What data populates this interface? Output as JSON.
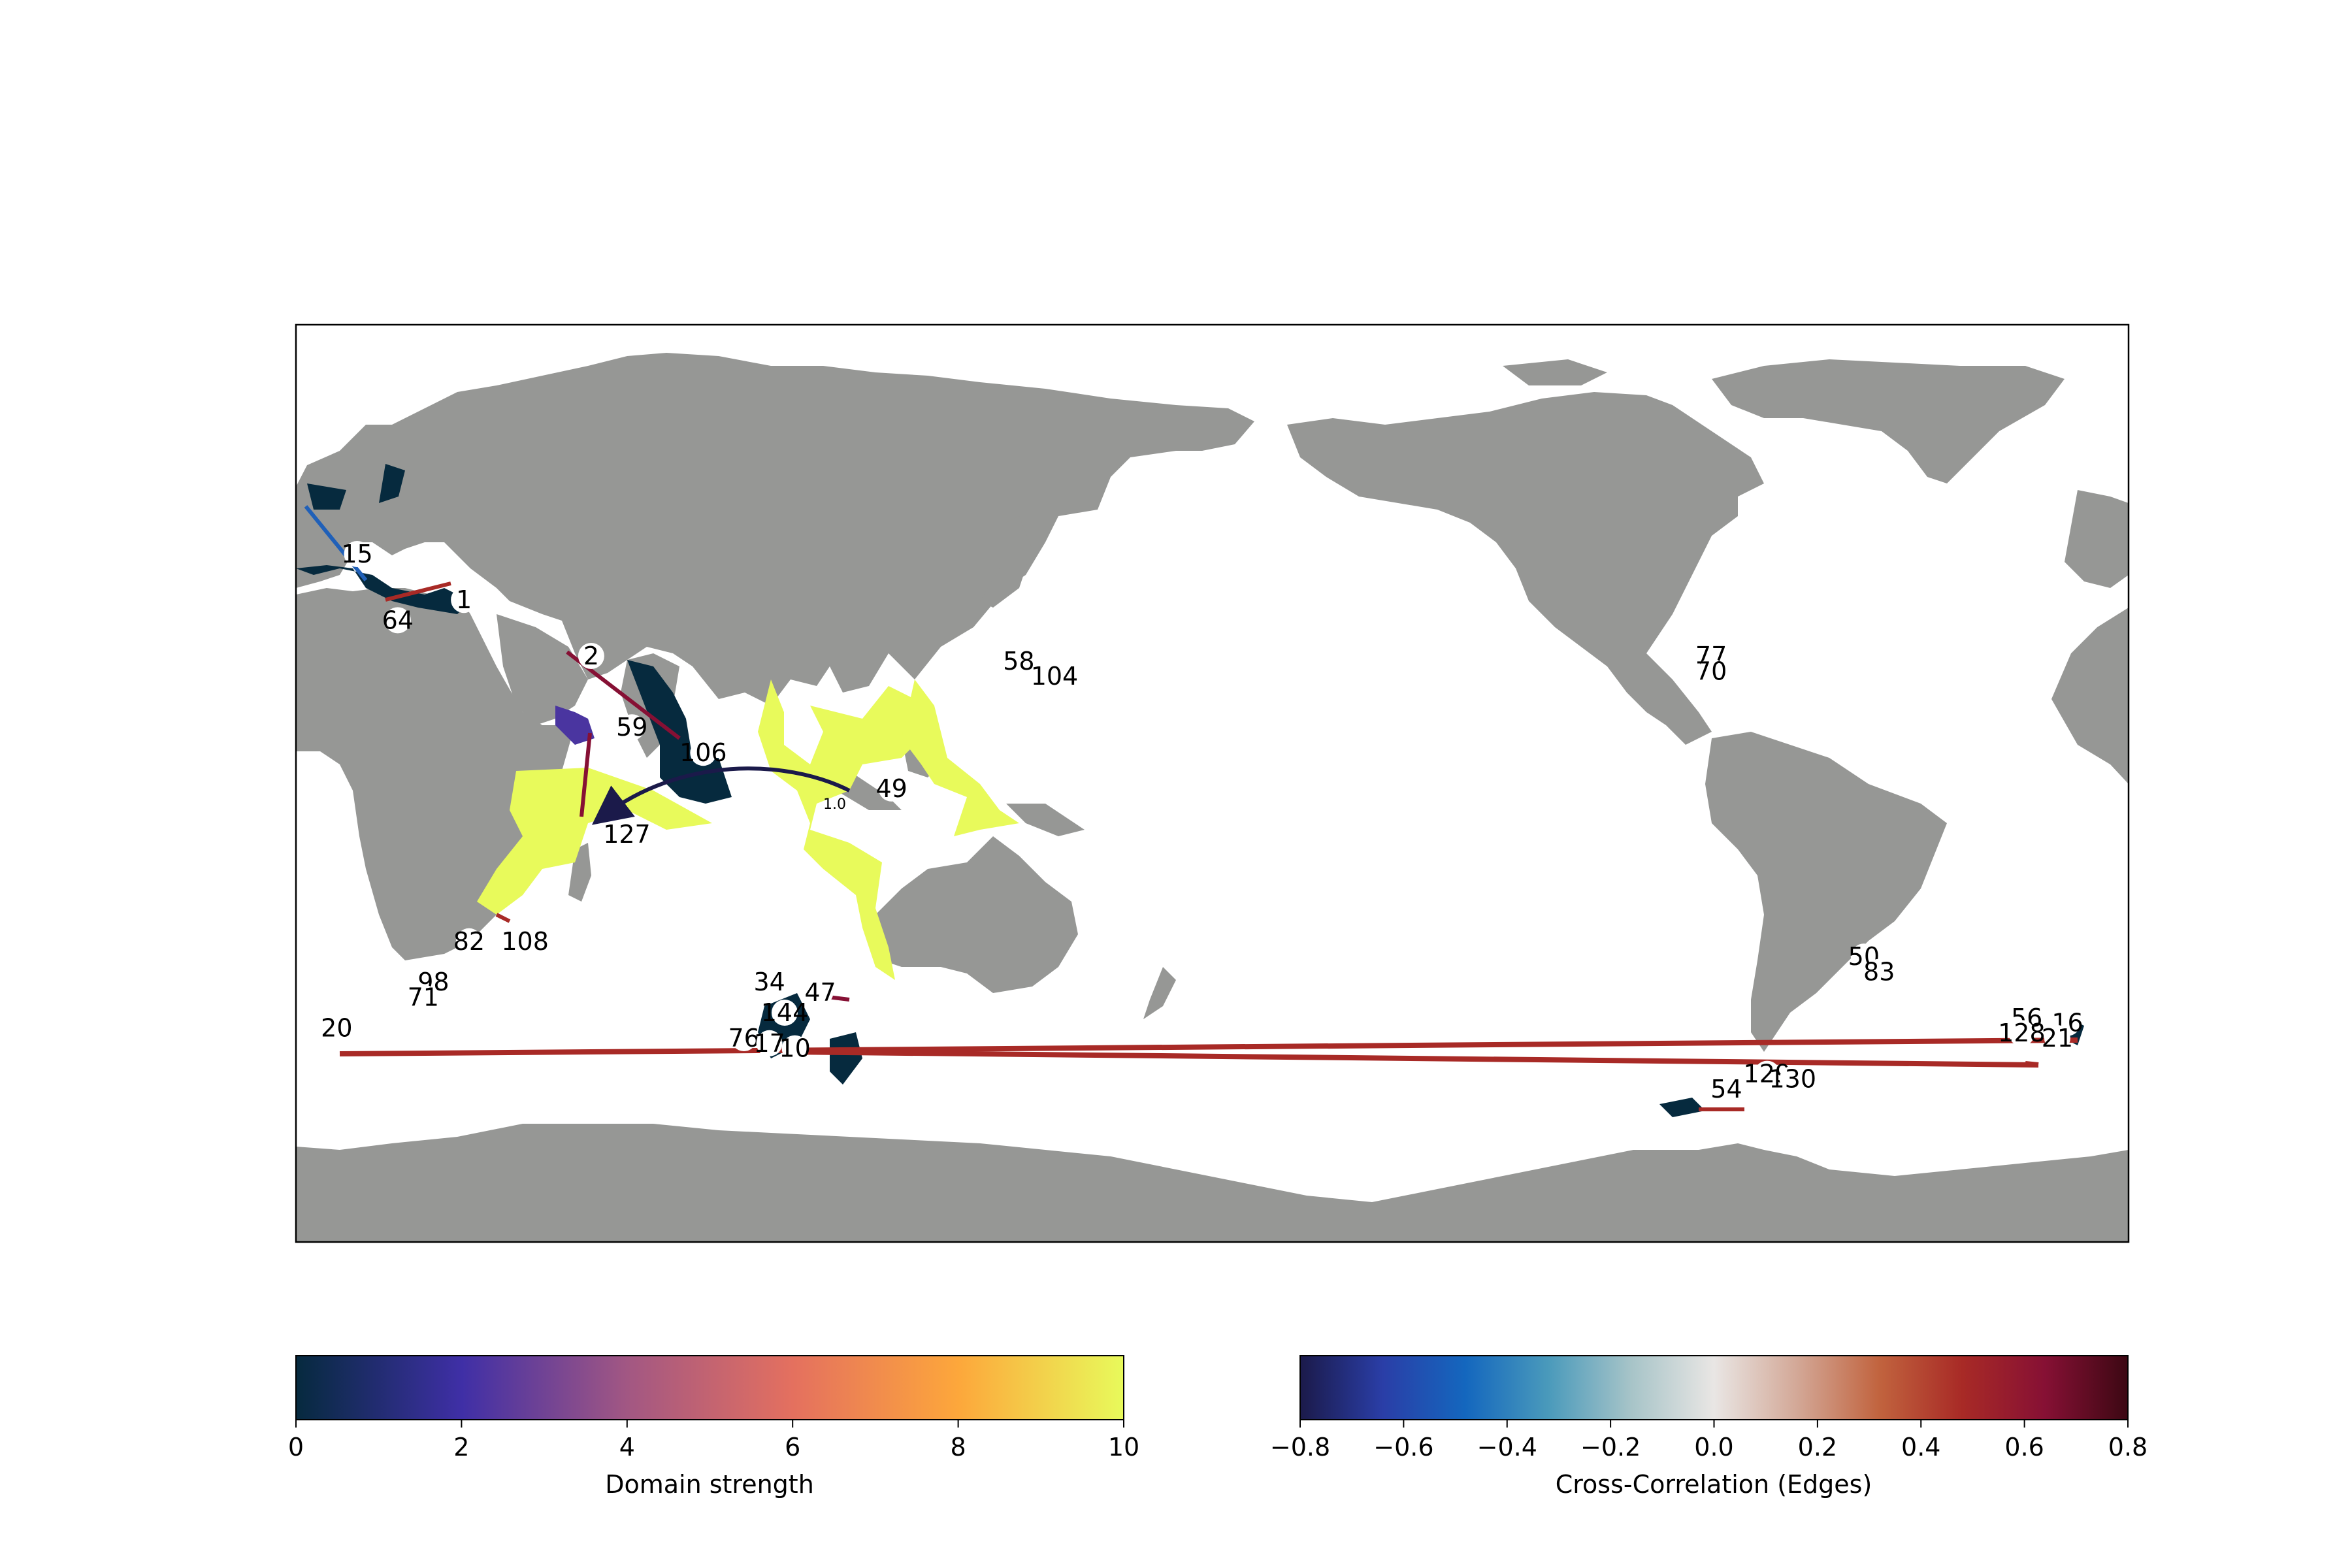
{
  "map": {
    "land_color": "#969795",
    "ocean_color": "#ffffff",
    "nodes": [
      {
        "id": "15",
        "lon": 12,
        "lat": 45
      },
      {
        "id": "1",
        "lon": 33,
        "lat": 36
      },
      {
        "id": "64",
        "lon": 20,
        "lat": 32
      },
      {
        "id": "2",
        "lon": 58,
        "lat": 25
      },
      {
        "id": "59",
        "lon": 66,
        "lat": 11
      },
      {
        "id": "106",
        "lon": 80,
        "lat": 6
      },
      {
        "id": "49",
        "lon": 117,
        "lat": -1
      },
      {
        "id": "127",
        "lon": 65,
        "lat": -10
      },
      {
        "id": "58",
        "lon": 142,
        "lat": 24
      },
      {
        "id": "104",
        "lon": 149,
        "lat": 21
      },
      {
        "id": "82",
        "lon": 34,
        "lat": -31
      },
      {
        "id": "108",
        "lon": 45,
        "lat": -31
      },
      {
        "id": "98",
        "lon": 27,
        "lat": -39
      },
      {
        "id": "71",
        "lon": 25,
        "lat": -42
      },
      {
        "id": "34",
        "lon": 93,
        "lat": -39
      },
      {
        "id": "47",
        "lon": 103,
        "lat": -41
      },
      {
        "id": "144",
        "lon": 96,
        "lat": -45
      },
      {
        "id": "76",
        "lon": 88,
        "lat": -50
      },
      {
        "id": "17",
        "lon": 93,
        "lat": -51
      },
      {
        "id": "10",
        "lon": 98,
        "lat": -52
      },
      {
        "id": "20",
        "lon": 8,
        "lat": -48
      },
      {
        "id": "77",
        "lon": 278,
        "lat": 25
      },
      {
        "id": "70",
        "lon": 278,
        "lat": 22
      },
      {
        "id": "50",
        "lon": 308,
        "lat": -34
      },
      {
        "id": "83",
        "lon": 311,
        "lat": -37
      },
      {
        "id": "56",
        "lon": 340,
        "lat": -46
      },
      {
        "id": "128",
        "lon": 339,
        "lat": -49
      },
      {
        "id": "16",
        "lon": 348,
        "lat": -47
      },
      {
        "id": "21",
        "lon": 346,
        "lat": -50
      },
      {
        "id": "129",
        "lon": 289,
        "lat": -57
      },
      {
        "id": "54",
        "lon": 281,
        "lat": -60
      },
      {
        "id": "130",
        "lon": 294,
        "lat": -58
      }
    ],
    "edge_label": "1.0"
  },
  "colorbars": {
    "domain": {
      "title": "Domain strength",
      "ticks": [
        "0",
        "2",
        "4",
        "6",
        "8",
        "10"
      ],
      "vmin": 0,
      "vmax": 10,
      "colors": [
        "#062a3e",
        "#3f2fa6",
        "#a25783",
        "#e4705f",
        "#fda73b",
        "#e8fa5b"
      ]
    },
    "edges": {
      "title": "Cross-Correlation (Edges)",
      "ticks": [
        "−0.8",
        "−0.6",
        "−0.4",
        "−0.2",
        "0.0",
        "0.2",
        "0.4",
        "0.6",
        "0.8"
      ],
      "vmin": -0.8,
      "vmax": 0.8,
      "colors": [
        "#1b1a4a",
        "#2a3ea7",
        "#1467be",
        "#4a9abb",
        "#a7c4c8",
        "#e9e6e4",
        "#d3a897",
        "#c1633e",
        "#a82a26",
        "#861034",
        "#3c0813"
      ]
    }
  }
}
